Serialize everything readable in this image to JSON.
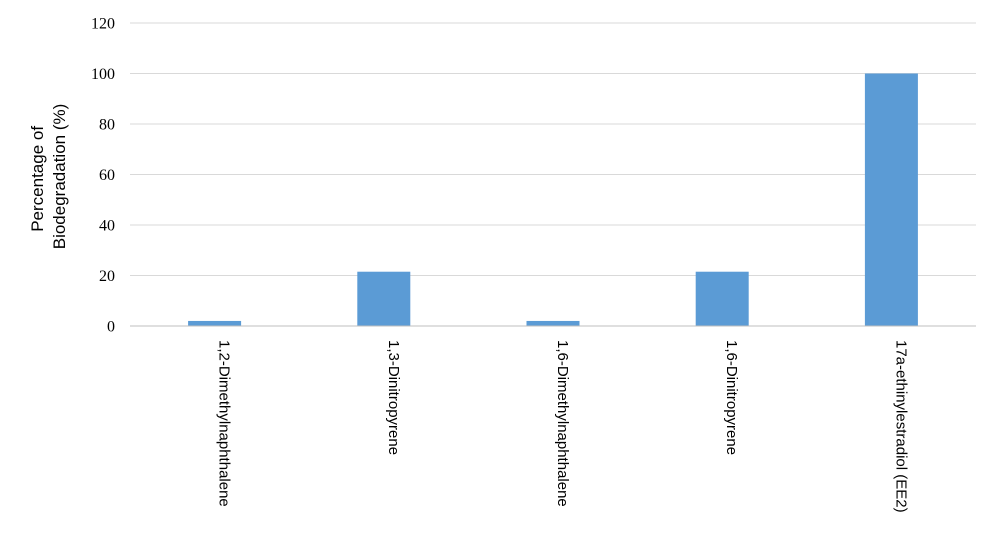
{
  "chart_data": {
    "type": "bar",
    "title": "",
    "xlabel": "",
    "ylabel_lines": [
      "Percentage of",
      "Biodegradation (%)"
    ],
    "categories": [
      "1,2-Dimethylnaphthalene",
      "1,3-Dinitropyrene",
      "1,6-Dimethylnaphthalene",
      "1,6-Dinitropyrene",
      "17a-ethinylestradiol (EE2)"
    ],
    "values": [
      2,
      21.5,
      2,
      21.5,
      100
    ],
    "ylim": [
      0,
      120
    ],
    "yticks": [
      0,
      20,
      40,
      60,
      80,
      100,
      120
    ],
    "grid": true,
    "legend": "none",
    "bar_color": "#5b9bd5"
  }
}
